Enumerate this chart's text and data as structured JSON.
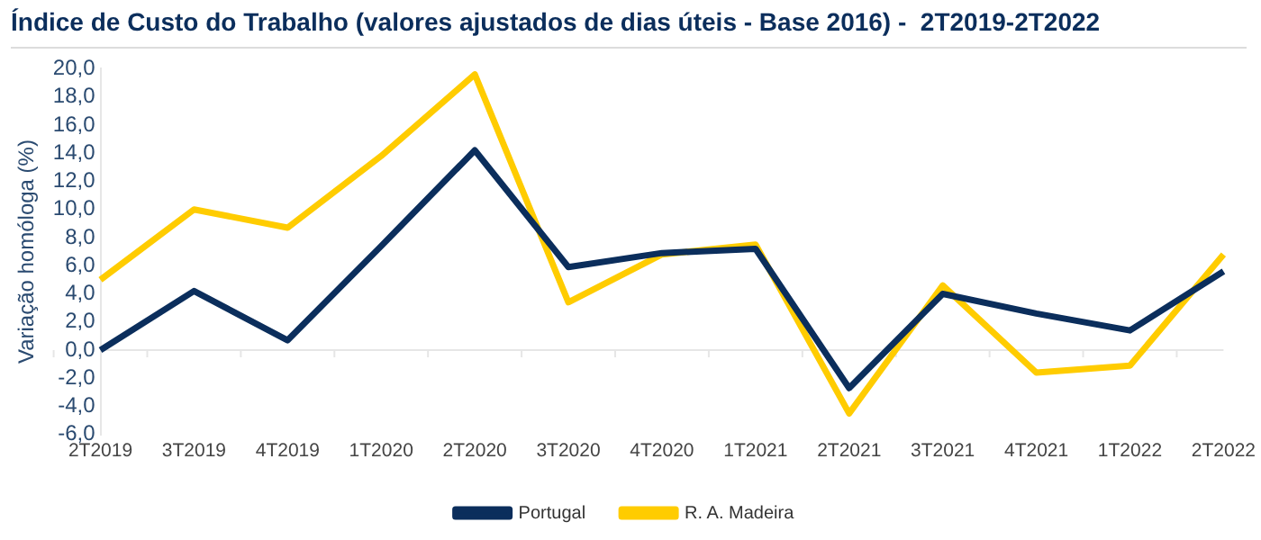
{
  "chart_data": {
    "type": "line",
    "title": "Índice de Custo do Trabalho (valores ajustados de dias úteis - Base 2016) -  2T2019-2T2022",
    "ylabel": "Variação homóloga (%)",
    "categories": [
      "2T2019",
      "3T2019",
      "4T2019",
      "1T2020",
      "2T2020",
      "3T2020",
      "4T2020",
      "1T2021",
      "2T2021",
      "3T2021",
      "4T2021",
      "1T2022",
      "2T2022"
    ],
    "series": [
      {
        "name": "Portugal",
        "color": "#0b2e5c",
        "values": [
          0.0,
          4.2,
          0.7,
          7.4,
          14.2,
          5.9,
          6.9,
          7.2,
          -2.7,
          4.0,
          2.6,
          1.4,
          5.6
        ]
      },
      {
        "name": "R. A. Madeira",
        "color": "#ffcc00",
        "values": [
          5.0,
          10.0,
          8.7,
          13.8,
          19.6,
          3.4,
          6.8,
          7.5,
          -4.5,
          4.6,
          -1.6,
          -1.1,
          6.8
        ]
      }
    ],
    "ylim": [
      -6,
      20
    ],
    "yticks": [
      {
        "value": -6,
        "label": "-6,0"
      },
      {
        "value": -4,
        "label": "-4,0"
      },
      {
        "value": -2,
        "label": "-2,0"
      },
      {
        "value": 0,
        "label": "0,0"
      },
      {
        "value": 2,
        "label": "2,0"
      },
      {
        "value": 4,
        "label": "4,0"
      },
      {
        "value": 6,
        "label": "6,0"
      },
      {
        "value": 8,
        "label": "8,0"
      },
      {
        "value": 10,
        "label": "10,0"
      },
      {
        "value": 12,
        "label": "12,0"
      },
      {
        "value": 14,
        "label": "14,0"
      },
      {
        "value": 16,
        "label": "16,0"
      },
      {
        "value": 18,
        "label": "18,0"
      },
      {
        "value": 20,
        "label": "20,0"
      }
    ],
    "ref_lines": [
      {
        "axis": "y",
        "value": 0,
        "color": "#e6e6e6"
      }
    ],
    "legend": "bottom",
    "marker": "none",
    "line_style": "solid"
  }
}
